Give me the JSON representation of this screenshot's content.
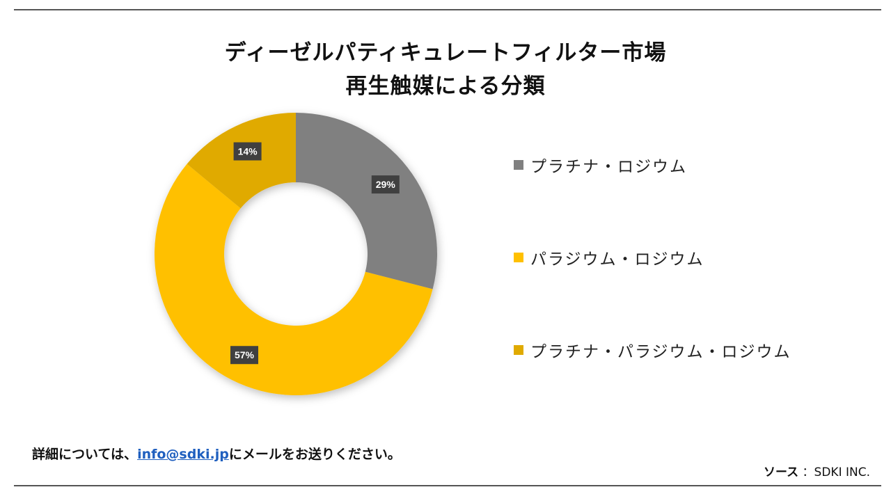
{
  "chart_data": {
    "type": "donut",
    "title_line1": "ディーゼルパティキュレートフィルター市場",
    "title_line2": "再生触媒による分類",
    "series": [
      {
        "name": "プラチナ・ロジウム",
        "value": 29,
        "label": "29%",
        "color": "#808080"
      },
      {
        "name": "パラジウム・ロジウム",
        "value": 57,
        "label": "57%",
        "color": "#ffc000"
      },
      {
        "name": "プラチナ・パラジウム・ロジウム",
        "value": 14,
        "label": "14%",
        "color": "#e0aa00"
      }
    ],
    "legend_position": "right"
  },
  "footer": {
    "contact_prefix": "詳細については、",
    "contact_email": "info@sdki.jp",
    "contact_suffix": "にメールをお送りください。",
    "source_label": "ソース",
    "source_value": "：SDKI INC."
  }
}
